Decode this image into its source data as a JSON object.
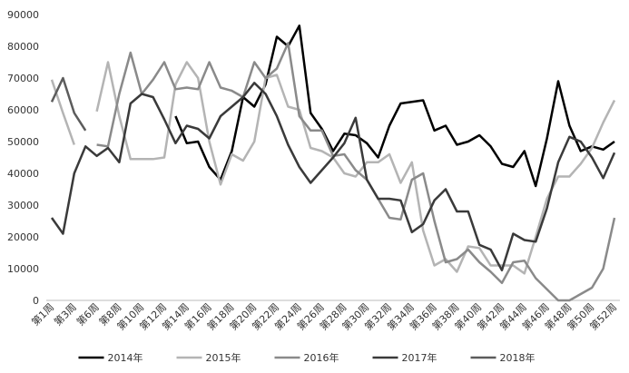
{
  "chart_data": {
    "type": "line",
    "categories": [
      "第1周",
      null,
      "第3周",
      null,
      "第6周",
      null,
      "第8周",
      null,
      "第10周",
      null,
      "第12周",
      null,
      "第14周",
      null,
      "第16周",
      null,
      "第18周",
      null,
      "第20周",
      null,
      "第22周",
      null,
      "第24周",
      null,
      "第26周",
      null,
      "第28周",
      null,
      "第30周",
      null,
      "第32周",
      null,
      "第34周",
      null,
      "第36周",
      null,
      "第38周",
      null,
      "第40周",
      null,
      "第42周",
      null,
      "第44周",
      null,
      "第46周",
      null,
      "第48周",
      null,
      "第50周",
      null,
      "第52周"
    ],
    "series": [
      {
        "name": "2014年",
        "color": "#000000",
        "values": [
          null,
          null,
          null,
          null,
          null,
          null,
          null,
          null,
          null,
          null,
          null,
          58000,
          49500,
          50000,
          42000,
          38000,
          47000,
          64000,
          61000,
          68000,
          83000,
          80000,
          86500,
          59000,
          54000,
          47000,
          52500,
          52000,
          49500,
          45000,
          55000,
          62000,
          62500,
          63000,
          53500,
          55000,
          49000,
          50000,
          52000,
          48500,
          43000,
          42000,
          47000,
          36000,
          51000,
          69000,
          55000,
          47000,
          48500,
          47500,
          50000
        ]
      },
      {
        "name": "2015年",
        "color": "#b4b4b4",
        "values": [
          69500,
          59000,
          49000,
          null,
          59500,
          75000,
          58000,
          44500,
          44500,
          44500,
          45000,
          68000,
          75000,
          70000,
          50000,
          36500,
          46000,
          44000,
          50000,
          70000,
          71000,
          61000,
          60000,
          48000,
          47000,
          45000,
          40000,
          39000,
          43500,
          43500,
          46000,
          37000,
          43500,
          22000,
          11000,
          13000,
          9000,
          17000,
          16500,
          11000,
          11000,
          11000,
          8500,
          20000,
          32000,
          39000,
          39000,
          43000,
          48000,
          56000,
          63000
        ]
      },
      {
        "name": "2016年",
        "color": "#8a8a8a",
        "values": [
          null,
          null,
          null,
          null,
          49000,
          48500,
          65000,
          78000,
          65000,
          69500,
          75000,
          66500,
          67000,
          66500,
          75000,
          67000,
          66000,
          64000,
          75000,
          70000,
          73000,
          81000,
          58000,
          53500,
          53500,
          45500,
          46000,
          41000,
          38000,
          32000,
          26000,
          25500,
          38000,
          40000,
          25000,
          12000,
          13000,
          16000,
          12000,
          9000,
          5500,
          12000,
          12500,
          7000,
          3500,
          0,
          0,
          2000,
          4000,
          10000,
          26000
        ]
      },
      {
        "name": "2017年",
        "color": "#3a3a3a",
        "values": [
          26000,
          21000,
          40000,
          48500,
          45500,
          48000,
          43500,
          62000,
          65000,
          64000,
          57000,
          49500,
          55000,
          54000,
          51000,
          58000,
          61000,
          64000,
          68500,
          65000,
          58000,
          49000,
          42000,
          37000,
          41000,
          45000,
          49500,
          57500,
          38000,
          32000,
          32000,
          31500,
          21500,
          24000,
          31500,
          35000,
          28000,
          28000,
          17500,
          16000,
          9500,
          21000,
          19000,
          18500,
          29000,
          43500,
          51500,
          50000,
          45000,
          38500,
          46500
        ]
      },
      {
        "name": "2018年",
        "color": "#5c5c5c",
        "values": [
          62500,
          70000,
          59000,
          53500,
          null,
          null,
          null,
          null,
          null,
          null,
          null,
          null,
          null,
          null,
          null,
          null,
          null,
          null,
          null,
          null,
          null,
          null,
          null,
          null,
          null,
          null,
          null,
          null,
          null,
          null,
          null,
          null,
          null,
          null,
          null,
          null,
          null,
          null,
          null,
          null,
          null,
          null,
          null,
          null,
          null,
          null,
          null,
          null,
          null,
          null,
          null
        ]
      }
    ],
    "ylim": [
      0,
      90000
    ],
    "yticks": [
      0,
      10000,
      20000,
      30000,
      40000,
      50000,
      60000,
      70000,
      80000,
      90000
    ],
    "grid": false,
    "legend": "bottom"
  }
}
